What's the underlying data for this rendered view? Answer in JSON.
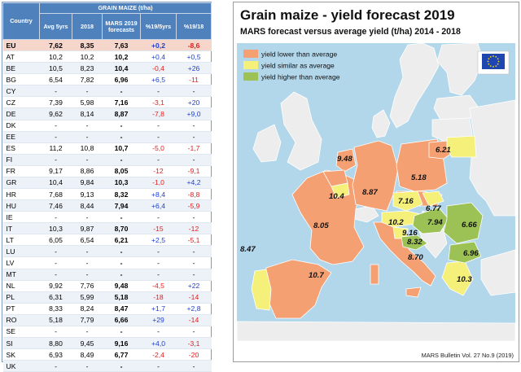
{
  "table": {
    "header_group": "GRAIN MAIZE (t/ha)",
    "columns": [
      "Country",
      "Avg 5yrs",
      "2018",
      "MARS 2019 forecasts",
      "%19/5yrs",
      "%19/18"
    ],
    "rows": [
      [
        "EU",
        "7,62",
        "8,35",
        "7,63",
        "+0,2",
        "-8,6"
      ],
      [
        "AT",
        "10,2",
        "10,2",
        "10,2",
        "+0,4",
        "+0,5"
      ],
      [
        "BE",
        "10,5",
        "8,23",
        "10,4",
        "-0,4",
        "+26"
      ],
      [
        "BG",
        "6,54",
        "7,82",
        "6,96",
        "+6,5",
        "-11"
      ],
      [
        "CY",
        "-",
        "-",
        "-",
        "-",
        "-"
      ],
      [
        "CZ",
        "7,39",
        "5,98",
        "7,16",
        "-3,1",
        "+20"
      ],
      [
        "DE",
        "9,62",
        "8,14",
        "8,87",
        "-7,8",
        "+9,0"
      ],
      [
        "DK",
        "-",
        "-",
        "-",
        "-",
        "-"
      ],
      [
        "EE",
        "-",
        "-",
        "-",
        "-",
        "-"
      ],
      [
        "ES",
        "11,2",
        "10,8",
        "10,7",
        "-5,0",
        "-1,7"
      ],
      [
        "FI",
        "-",
        "-",
        "-",
        "-",
        "-"
      ],
      [
        "FR",
        "9,17",
        "8,86",
        "8,05",
        "-12",
        "-9,1"
      ],
      [
        "GR",
        "10,4",
        "9,84",
        "10,3",
        "-1,0",
        "+4,2"
      ],
      [
        "HR",
        "7,68",
        "9,13",
        "8,32",
        "+8,4",
        "-8,8"
      ],
      [
        "HU",
        "7,46",
        "8,44",
        "7,94",
        "+6,4",
        "-5,9"
      ],
      [
        "IE",
        "-",
        "-",
        "-",
        "-",
        "-"
      ],
      [
        "IT",
        "10,3",
        "9,87",
        "8,70",
        "-15",
        "-12"
      ],
      [
        "LT",
        "6,05",
        "6,54",
        "6,21",
        "+2,5",
        "-5,1"
      ],
      [
        "LU",
        "-",
        "-",
        "-",
        "-",
        "-"
      ],
      [
        "LV",
        "-",
        "-",
        "-",
        "-",
        "-"
      ],
      [
        "MT",
        "-",
        "-",
        "-",
        "-",
        "-"
      ],
      [
        "NL",
        "9,92",
        "7,76",
        "9,48",
        "-4,5",
        "+22"
      ],
      [
        "PL",
        "6,31",
        "5,99",
        "5,18",
        "-18",
        "-14"
      ],
      [
        "PT",
        "8,33",
        "8,24",
        "8,47",
        "+1,7",
        "+2,8"
      ],
      [
        "RO",
        "5,18",
        "7,79",
        "6,66",
        "+29",
        "-14"
      ],
      [
        "SE",
        "-",
        "-",
        "-",
        "-",
        "-"
      ],
      [
        "SI",
        "8,80",
        "9,45",
        "9,16",
        "+4,0",
        "-3,1"
      ],
      [
        "SK",
        "6,93",
        "8,49",
        "6,77",
        "-2,4",
        "-20"
      ],
      [
        "UK",
        "-",
        "-",
        "-",
        "-",
        "-"
      ]
    ]
  },
  "map": {
    "title": "Grain maize - yield forecast 2019",
    "subtitle": "MARS forecast versus average yield (t/ha) 2014 - 2018",
    "legend": [
      {
        "label": "yield lower than average",
        "color": "#f4a072"
      },
      {
        "label": "yield similar as average",
        "color": "#f4f07a"
      },
      {
        "label": "yield higher than average",
        "color": "#9cc255"
      }
    ],
    "colors": {
      "sea": "#b2d6ea",
      "non_eu_land": "#ededed",
      "lower": "#f4a072",
      "similar": "#f4f07a",
      "higher": "#9cc255",
      "border": "#ffffff"
    },
    "value_labels": [
      "9.48",
      "10.4",
      "8.87",
      "5.18",
      "6.21",
      "7.16",
      "6.77",
      "7.94",
      "8.05",
      "10.2",
      "9.16",
      "8.32",
      "6.66",
      "6.96",
      "8.70",
      "8.47",
      "10.7",
      "10.3"
    ],
    "footer": "MARS Bulletin Vol. 27 No.9 (2019)"
  }
}
